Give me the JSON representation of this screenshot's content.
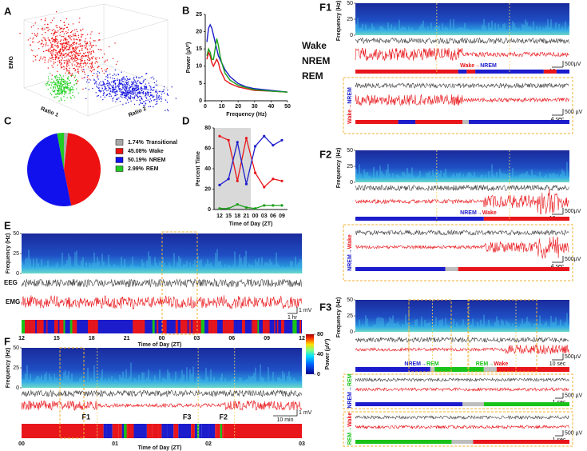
{
  "panel_a": {
    "label": "A",
    "z_label": "EMG",
    "x_label": "Ratio 1",
    "y_label": "Ratio 2"
  },
  "chart_data": [
    {
      "type": "line",
      "panel_label": "B",
      "x_label": "Frequency (Hz)",
      "y_label": "Power (µV²)",
      "x": [
        1,
        2,
        3,
        4,
        5,
        6,
        7,
        8,
        9,
        10,
        12,
        15,
        20,
        25,
        30,
        40,
        50
      ],
      "series": [
        {
          "name": "Wake",
          "color": "#e8161b",
          "values": [
            12,
            14,
            13,
            11,
            10,
            11,
            12,
            11,
            9,
            8,
            6,
            5,
            4,
            3.5,
            3,
            2.8,
            2.5
          ]
        },
        {
          "name": "NREM",
          "color": "#1c1ccc",
          "values": [
            17,
            21,
            22,
            21,
            19,
            17,
            15,
            13,
            12,
            11,
            9,
            7,
            5,
            4,
            3.5,
            3,
            2.5
          ]
        },
        {
          "name": "REM",
          "color": "#19a019",
          "values": [
            13,
            15,
            14,
            12,
            12,
            15,
            18,
            16,
            13,
            11,
            8,
            6,
            4.5,
            3.8,
            3.2,
            2.8,
            2.5
          ]
        }
      ],
      "xlim": [
        0,
        50
      ],
      "xticks": [
        0,
        10,
        20,
        30,
        40,
        50
      ],
      "ylim": [
        0,
        25
      ],
      "yticks": [
        0,
        5,
        10,
        15,
        20,
        25
      ],
      "legend": "right"
    },
    {
      "type": "pie",
      "panel_label": "C",
      "categories": [
        "Transitional",
        "Wake",
        "NREM",
        "REM"
      ],
      "values": [
        1.74,
        45.08,
        50.19,
        2.99
      ],
      "value_labels": [
        "1.74%",
        "45.08%",
        "50.19%",
        "2.99%"
      ],
      "colors": [
        "#a8a8a8",
        "#ee1111",
        "#1111ee",
        "#22cc22"
      ],
      "legend": "right"
    },
    {
      "type": "line",
      "panel_label": "D",
      "x_label": "Time of Day (ZT)",
      "y_label": "Percent Time",
      "categories": [
        "12",
        "15",
        "18",
        "21",
        "00",
        "03",
        "06",
        "09"
      ],
      "series": [
        {
          "name": "Wake",
          "color": "#e8161b",
          "values": [
            72,
            68,
            28,
            70,
            36,
            22,
            30,
            28
          ]
        },
        {
          "name": "NREM",
          "color": "#1c1ccc",
          "values": [
            24,
            30,
            66,
            25,
            62,
            72,
            63,
            68
          ]
        },
        {
          "name": "REM",
          "color": "#19a019",
          "values": [
            1,
            1,
            5,
            2,
            1,
            4,
            4,
            4
          ]
        }
      ],
      "ylim": [
        0,
        80
      ],
      "yticks": [
        0,
        20,
        40,
        60,
        80
      ]
    }
  ],
  "panel_e": {
    "label": "E",
    "freq_label": "Frequency (Hz)",
    "freq_lim": [
      0,
      50
    ],
    "freq_ticks": [
      50,
      25,
      0
    ],
    "eeg": "EEG",
    "emg": "EMG",
    "scale_v": "1 mV",
    "scale_t": "1 hr",
    "time_ticks": [
      "12",
      "15",
      "18",
      "21",
      "00",
      "03",
      "06",
      "09",
      "12"
    ],
    "time_label": "Time of Day (ZT)"
  },
  "colorbar": {
    "label": "Power (µV²)",
    "lim": [
      0,
      80
    ],
    "ticks": [
      80,
      40,
      0
    ]
  },
  "panel_f": {
    "label": "F",
    "freq_label": "Frequency (Hz)",
    "freq_lim": [
      0,
      50
    ],
    "freq_ticks": [
      50,
      25,
      0
    ],
    "scale_v": "1 mV",
    "scale_t": "10 min",
    "markers": [
      "F1",
      "F3",
      "F2"
    ],
    "time_ticks": [
      "00",
      "01",
      "02",
      "03"
    ],
    "time_label": "Time of Day (ZT)"
  },
  "panel_f1": {
    "label": "F1",
    "freq_label": "Frequency (Hz)",
    "freq_lim": [
      0,
      50
    ],
    "freq_ticks": [
      50,
      25,
      0
    ],
    "transition": [
      {
        "text": "Wake",
        "color": "#e8161b"
      },
      {
        "text": "→",
        "color": "#e8161b"
      },
      {
        "text": "NREM",
        "color": "#1c1ccc"
      }
    ],
    "scale_v": "500µV",
    "scale_t": "10 sec",
    "zoom": {
      "transition": [
        {
          "text": "Wake",
          "color": "#e8161b"
        },
        {
          "text": "→",
          "color": "#e8161b"
        },
        {
          "text": "NREM",
          "color": "#1c1ccc"
        }
      ],
      "scale_v": "500 µV",
      "scale_t": "4 sec"
    }
  },
  "panel_f2": {
    "label": "F2",
    "freq_label": "Frequency (Hz)",
    "freq_lim": [
      0,
      50
    ],
    "freq_ticks": [
      50,
      25,
      0
    ],
    "transition": [
      {
        "text": "NREM",
        "color": "#1c1ccc"
      },
      {
        "text": "→",
        "color": "#1c1ccc"
      },
      {
        "text": "Wake",
        "color": "#e8161b"
      }
    ],
    "scale_v": "500µV",
    "scale_t": "10 sec",
    "zoom": {
      "transition": [
        {
          "text": "NREM",
          "color": "#1c1ccc"
        },
        {
          "text": "→",
          "color": "#1c1ccc"
        },
        {
          "text": "Wake",
          "color": "#e8161b"
        }
      ],
      "scale_v": "500µV",
      "scale_t": "4 sec"
    }
  },
  "panel_f3": {
    "label": "F3",
    "freq_label": "Frequency (Hz)",
    "freq_lim": [
      0,
      50
    ],
    "freq_ticks": [
      50,
      25,
      0
    ],
    "transitions": [
      [
        {
          "text": "NREM",
          "color": "#1c1ccc"
        },
        {
          "text": "→",
          "color": "#1c1ccc"
        },
        {
          "text": "REM",
          "color": "#19c219"
        }
      ],
      [
        {
          "text": "REM",
          "color": "#19c219"
        },
        {
          "text": "→",
          "color": "#19c219"
        },
        {
          "text": "Wake",
          "color": "#e8161b"
        }
      ]
    ],
    "scale_v": "500µV",
    "scale_t": "10 sec",
    "insets": [
      {
        "transition": [
          {
            "text": "NREM",
            "color": "#1c1ccc"
          },
          {
            "text": "→",
            "color": "#1c1ccc"
          },
          {
            "text": "REM",
            "color": "#19c219"
          }
        ],
        "scale_v": "500 µV",
        "scale_t": "1 sec"
      },
      {
        "transition": [
          {
            "text": "REM",
            "color": "#19c219"
          },
          {
            "text": "→",
            "color": "#19c219"
          },
          {
            "text": "Wake",
            "color": "#e8161b"
          }
        ],
        "scale_v": "500 µV",
        "scale_t": "1 sec"
      }
    ]
  }
}
